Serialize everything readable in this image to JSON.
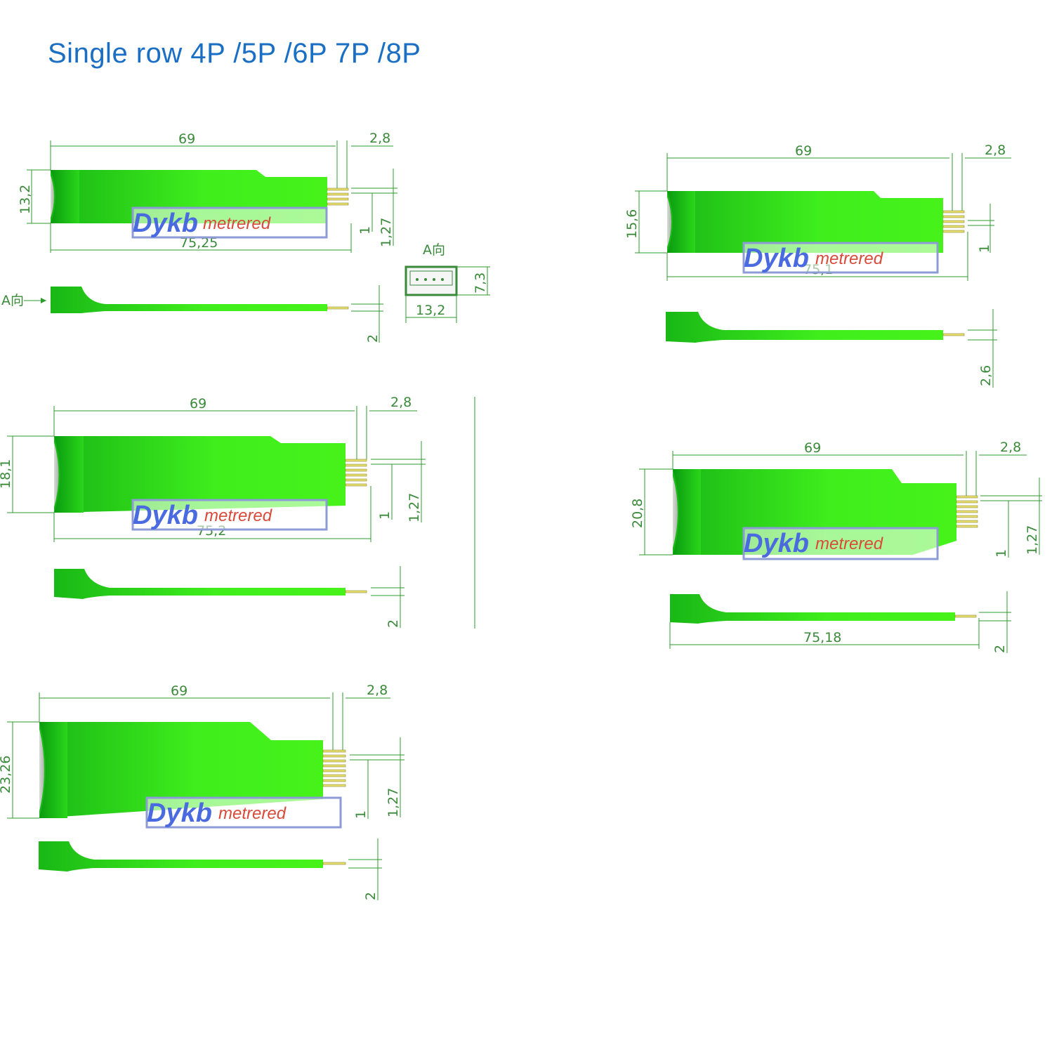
{
  "title": "Single row 4P /5P /6P 7P /8P",
  "colors": {
    "board": "#32e61e",
    "board_dark": "#12a012",
    "dim_line": "#2e9b2e",
    "title": "#1a6fc4",
    "watermark_border": "#8d9bd6"
  },
  "watermark": {
    "part1": "Dykb",
    "part2": "metrered"
  },
  "drawings": {
    "p4": {
      "length": "69",
      "pitch_end": "2,8",
      "width": "13,2",
      "total": "75,25",
      "gap": "1",
      "pitch": "1,27",
      "thick": "2",
      "view_label": "A向",
      "arrow_label": "A向",
      "conn_h": "7,3",
      "conn_w": "13,2"
    },
    "p5": {
      "length": "69",
      "pitch_end": "2,8",
      "width": "15,6",
      "total": "75,1",
      "gap": "1",
      "thick": "2,6"
    },
    "p6": {
      "length": "69",
      "pitch_end": "2,8",
      "width": "18,1",
      "total": "75,2",
      "gap": "1",
      "pitch": "1,27",
      "thick": "2"
    },
    "p7": {
      "length": "69",
      "pitch_end": "2,8",
      "width": "20,8",
      "total": "75,18",
      "gap": "1",
      "pitch": "1,27",
      "thick": "2"
    },
    "p8": {
      "length": "69",
      "pitch_end": "2,8",
      "width": "23,26",
      "gap": "1",
      "pitch": "1,27",
      "thick": "2"
    }
  }
}
